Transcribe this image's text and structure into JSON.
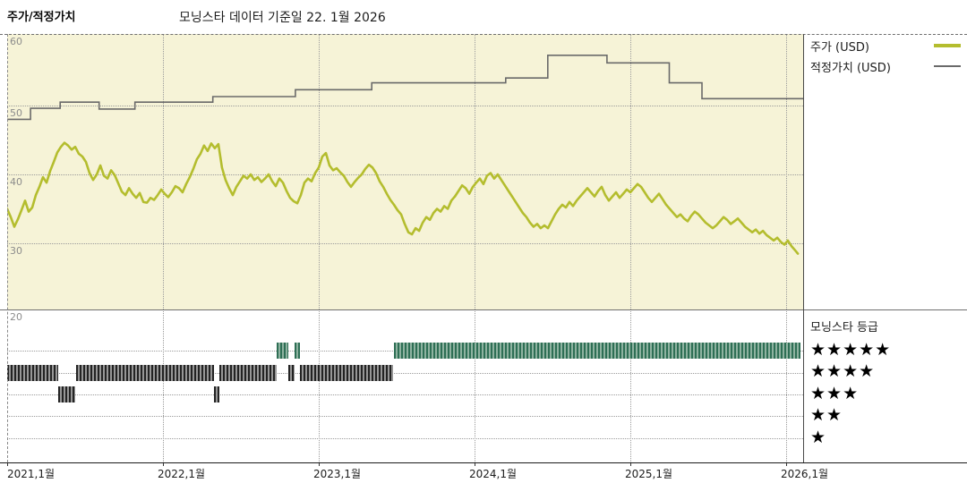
{
  "header": {
    "left_label": "주가/적정가치",
    "title": "모닝스타 데이터 기준일 22. 1월 2026"
  },
  "legend": {
    "items": [
      {
        "label": "주가 (USD)",
        "color": "#b4bd2e",
        "thickness": 4
      },
      {
        "label": "적정가치 (USD)",
        "color": "#6a6a6a",
        "thickness": 2
      }
    ]
  },
  "rating_legend": {
    "title": "모닝스타 등급",
    "rows": [
      "★★★★★",
      "★★★★",
      "★★★",
      "★★",
      "★"
    ]
  },
  "chart_data": {
    "type": "line",
    "title": "모닝스타 데이터 기준일 22. 1월 2026",
    "xlabel": "",
    "ylabel": "USD",
    "xlim": [
      2021.0,
      2026.11
    ],
    "ylim": [
      20.4,
      60.4
    ],
    "grid": true,
    "legend_position": "right",
    "x_ticks": [
      2021,
      2022,
      2023,
      2024,
      2025,
      2026
    ],
    "x_tick_labels": [
      "2021,1월",
      "2022,1월",
      "2023,1월",
      "2024,1월",
      "2025,1월",
      "2026,1월"
    ],
    "y_ticks": [
      60,
      50,
      40,
      30,
      20
    ],
    "series": [
      {
        "name": "주가 (USD)",
        "color": "#b4bd2e",
        "style": "line",
        "points": [
          [
            2021.0,
            35.0
          ],
          [
            2021.023,
            33.8
          ],
          [
            2021.046,
            32.4
          ],
          [
            2021.069,
            33.5
          ],
          [
            2021.092,
            34.8
          ],
          [
            2021.115,
            36.2
          ],
          [
            2021.138,
            34.6
          ],
          [
            2021.161,
            35.2
          ],
          [
            2021.184,
            37.0
          ],
          [
            2021.207,
            38.2
          ],
          [
            2021.23,
            39.6
          ],
          [
            2021.253,
            38.8
          ],
          [
            2021.276,
            40.5
          ],
          [
            2021.299,
            41.8
          ],
          [
            2021.322,
            43.2
          ],
          [
            2021.345,
            44.0
          ],
          [
            2021.368,
            44.6
          ],
          [
            2021.391,
            44.2
          ],
          [
            2021.414,
            43.6
          ],
          [
            2021.437,
            44.0
          ],
          [
            2021.46,
            43.0
          ],
          [
            2021.483,
            42.6
          ],
          [
            2021.506,
            41.8
          ],
          [
            2021.529,
            40.2
          ],
          [
            2021.552,
            39.2
          ],
          [
            2021.575,
            40.0
          ],
          [
            2021.598,
            41.3
          ],
          [
            2021.621,
            39.8
          ],
          [
            2021.644,
            39.4
          ],
          [
            2021.667,
            40.6
          ],
          [
            2021.69,
            39.9
          ],
          [
            2021.713,
            38.7
          ],
          [
            2021.736,
            37.5
          ],
          [
            2021.759,
            37.0
          ],
          [
            2021.782,
            38.0
          ],
          [
            2021.805,
            37.2
          ],
          [
            2021.828,
            36.6
          ],
          [
            2021.851,
            37.3
          ],
          [
            2021.874,
            36.0
          ],
          [
            2021.897,
            35.9
          ],
          [
            2021.92,
            36.6
          ],
          [
            2021.943,
            36.3
          ],
          [
            2021.966,
            37.0
          ],
          [
            2021.989,
            37.8
          ],
          [
            2022.011,
            37.2
          ],
          [
            2022.034,
            36.7
          ],
          [
            2022.057,
            37.4
          ],
          [
            2022.08,
            38.3
          ],
          [
            2022.103,
            38.0
          ],
          [
            2022.126,
            37.4
          ],
          [
            2022.149,
            38.6
          ],
          [
            2022.172,
            39.6
          ],
          [
            2022.195,
            40.8
          ],
          [
            2022.218,
            42.2
          ],
          [
            2022.241,
            43.0
          ],
          [
            2022.264,
            44.2
          ],
          [
            2022.287,
            43.4
          ],
          [
            2022.31,
            44.5
          ],
          [
            2022.333,
            43.8
          ],
          [
            2022.356,
            44.4
          ],
          [
            2022.379,
            41.0
          ],
          [
            2022.402,
            39.2
          ],
          [
            2022.425,
            38.0
          ],
          [
            2022.448,
            37.0
          ],
          [
            2022.471,
            38.2
          ],
          [
            2022.494,
            39.0
          ],
          [
            2022.517,
            39.8
          ],
          [
            2022.54,
            39.4
          ],
          [
            2022.563,
            40.0
          ],
          [
            2022.586,
            39.2
          ],
          [
            2022.609,
            39.6
          ],
          [
            2022.632,
            38.9
          ],
          [
            2022.655,
            39.4
          ],
          [
            2022.678,
            40.0
          ],
          [
            2022.701,
            39.0
          ],
          [
            2022.724,
            38.3
          ],
          [
            2022.747,
            39.4
          ],
          [
            2022.77,
            38.8
          ],
          [
            2022.793,
            37.6
          ],
          [
            2022.816,
            36.6
          ],
          [
            2022.839,
            36.1
          ],
          [
            2022.862,
            35.8
          ],
          [
            2022.885,
            37.0
          ],
          [
            2022.908,
            38.8
          ],
          [
            2022.931,
            39.4
          ],
          [
            2022.954,
            39.0
          ],
          [
            2022.977,
            40.2
          ],
          [
            2023.0,
            41.0
          ],
          [
            2023.023,
            42.6
          ],
          [
            2023.046,
            43.1
          ],
          [
            2023.069,
            41.3
          ],
          [
            2023.092,
            40.6
          ],
          [
            2023.115,
            40.9
          ],
          [
            2023.138,
            40.3
          ],
          [
            2023.161,
            39.8
          ],
          [
            2023.184,
            38.9
          ],
          [
            2023.207,
            38.2
          ],
          [
            2023.23,
            38.9
          ],
          [
            2023.253,
            39.5
          ],
          [
            2023.276,
            40.0
          ],
          [
            2023.299,
            40.8
          ],
          [
            2023.322,
            41.4
          ],
          [
            2023.345,
            41.0
          ],
          [
            2023.368,
            40.2
          ],
          [
            2023.391,
            39.0
          ],
          [
            2023.414,
            38.2
          ],
          [
            2023.437,
            37.2
          ],
          [
            2023.46,
            36.3
          ],
          [
            2023.483,
            35.6
          ],
          [
            2023.506,
            34.8
          ],
          [
            2023.529,
            34.2
          ],
          [
            2023.552,
            32.8
          ],
          [
            2023.575,
            31.6
          ],
          [
            2023.598,
            31.3
          ],
          [
            2023.621,
            32.2
          ],
          [
            2023.644,
            31.8
          ],
          [
            2023.667,
            33.0
          ],
          [
            2023.69,
            33.8
          ],
          [
            2023.713,
            33.4
          ],
          [
            2023.736,
            34.4
          ],
          [
            2023.759,
            35.0
          ],
          [
            2023.782,
            34.6
          ],
          [
            2023.805,
            35.4
          ],
          [
            2023.828,
            35.0
          ],
          [
            2023.851,
            36.2
          ],
          [
            2023.874,
            36.8
          ],
          [
            2023.897,
            37.6
          ],
          [
            2023.92,
            38.4
          ],
          [
            2023.943,
            38.0
          ],
          [
            2023.966,
            37.2
          ],
          [
            2023.989,
            38.2
          ],
          [
            2024.011,
            38.8
          ],
          [
            2024.034,
            39.4
          ],
          [
            2024.057,
            38.6
          ],
          [
            2024.08,
            39.8
          ],
          [
            2024.103,
            40.2
          ],
          [
            2024.126,
            39.4
          ],
          [
            2024.149,
            40.0
          ],
          [
            2024.172,
            39.2
          ],
          [
            2024.195,
            38.4
          ],
          [
            2024.218,
            37.6
          ],
          [
            2024.241,
            36.8
          ],
          [
            2024.264,
            36.0
          ],
          [
            2024.287,
            35.2
          ],
          [
            2024.31,
            34.4
          ],
          [
            2024.333,
            33.8
          ],
          [
            2024.356,
            33.0
          ],
          [
            2024.379,
            32.4
          ],
          [
            2024.402,
            32.8
          ],
          [
            2024.425,
            32.2
          ],
          [
            2024.448,
            32.6
          ],
          [
            2024.471,
            32.2
          ],
          [
            2024.494,
            33.2
          ],
          [
            2024.517,
            34.2
          ],
          [
            2024.54,
            35.0
          ],
          [
            2024.563,
            35.6
          ],
          [
            2024.586,
            35.2
          ],
          [
            2024.609,
            36.0
          ],
          [
            2024.632,
            35.4
          ],
          [
            2024.655,
            36.2
          ],
          [
            2024.678,
            36.8
          ],
          [
            2024.701,
            37.4
          ],
          [
            2024.724,
            38.0
          ],
          [
            2024.747,
            37.4
          ],
          [
            2024.77,
            36.8
          ],
          [
            2024.793,
            37.6
          ],
          [
            2024.816,
            38.2
          ],
          [
            2024.839,
            37.0
          ],
          [
            2024.862,
            36.2
          ],
          [
            2024.885,
            36.8
          ],
          [
            2024.908,
            37.4
          ],
          [
            2024.931,
            36.6
          ],
          [
            2024.954,
            37.2
          ],
          [
            2024.977,
            37.8
          ],
          [
            2025.0,
            37.4
          ],
          [
            2025.023,
            38.0
          ],
          [
            2025.046,
            38.6
          ],
          [
            2025.069,
            38.2
          ],
          [
            2025.092,
            37.4
          ],
          [
            2025.115,
            36.6
          ],
          [
            2025.138,
            36.0
          ],
          [
            2025.161,
            36.6
          ],
          [
            2025.184,
            37.2
          ],
          [
            2025.207,
            36.4
          ],
          [
            2025.23,
            35.6
          ],
          [
            2025.253,
            35.0
          ],
          [
            2025.276,
            34.4
          ],
          [
            2025.299,
            33.8
          ],
          [
            2025.322,
            34.2
          ],
          [
            2025.345,
            33.6
          ],
          [
            2025.368,
            33.2
          ],
          [
            2025.391,
            34.0
          ],
          [
            2025.414,
            34.6
          ],
          [
            2025.437,
            34.2
          ],
          [
            2025.46,
            33.6
          ],
          [
            2025.483,
            33.0
          ],
          [
            2025.506,
            32.6
          ],
          [
            2025.529,
            32.2
          ],
          [
            2025.552,
            32.6
          ],
          [
            2025.575,
            33.2
          ],
          [
            2025.598,
            33.8
          ],
          [
            2025.621,
            33.4
          ],
          [
            2025.644,
            32.8
          ],
          [
            2025.667,
            33.2
          ],
          [
            2025.69,
            33.6
          ],
          [
            2025.713,
            33.0
          ],
          [
            2025.736,
            32.4
          ],
          [
            2025.759,
            32.0
          ],
          [
            2025.782,
            31.6
          ],
          [
            2025.805,
            32.0
          ],
          [
            2025.828,
            31.4
          ],
          [
            2025.851,
            31.8
          ],
          [
            2025.874,
            31.2
          ],
          [
            2025.897,
            30.8
          ],
          [
            2025.92,
            30.4
          ],
          [
            2025.943,
            30.8
          ],
          [
            2025.966,
            30.2
          ],
          [
            2025.989,
            29.8
          ],
          [
            2026.011,
            30.4
          ],
          [
            2026.034,
            29.6
          ],
          [
            2026.057,
            29.0
          ],
          [
            2026.075,
            28.5
          ]
        ]
      },
      {
        "name": "적정가치 (USD)",
        "color": "#6a6a6a",
        "style": "step",
        "segments": [
          [
            2021.0,
            2021.15,
            48.0
          ],
          [
            2021.15,
            2021.34,
            49.6
          ],
          [
            2021.34,
            2021.59,
            50.5
          ],
          [
            2021.59,
            2021.82,
            49.5
          ],
          [
            2021.82,
            2022.32,
            50.5
          ],
          [
            2022.32,
            2022.85,
            51.3
          ],
          [
            2022.85,
            2023.34,
            52.3
          ],
          [
            2023.34,
            2024.2,
            53.3
          ],
          [
            2024.2,
            2024.47,
            54.0
          ],
          [
            2024.47,
            2024.85,
            57.3
          ],
          [
            2024.85,
            2025.25,
            56.2
          ],
          [
            2025.25,
            2025.46,
            53.3
          ],
          [
            2025.46,
            2026.11,
            51.0
          ]
        ]
      }
    ],
    "rating_timeline": [
      {
        "stars": 5,
        "segments": [
          [
            2022.73,
            2022.805
          ],
          [
            2022.845,
            2022.88
          ],
          [
            2023.48,
            2026.09
          ]
        ]
      },
      {
        "stars": 4,
        "segments": [
          [
            2021.0,
            2021.33
          ],
          [
            2021.44,
            2022.33
          ],
          [
            2022.36,
            2022.73
          ],
          [
            2022.805,
            2022.845
          ],
          [
            2022.88,
            2023.48
          ]
        ]
      },
      {
        "stars": 3,
        "segments": [
          [
            2021.33,
            2021.44
          ],
          [
            2022.33,
            2022.36
          ]
        ]
      },
      {
        "stars": 2,
        "segments": []
      },
      {
        "stars": 1,
        "segments": []
      }
    ]
  }
}
